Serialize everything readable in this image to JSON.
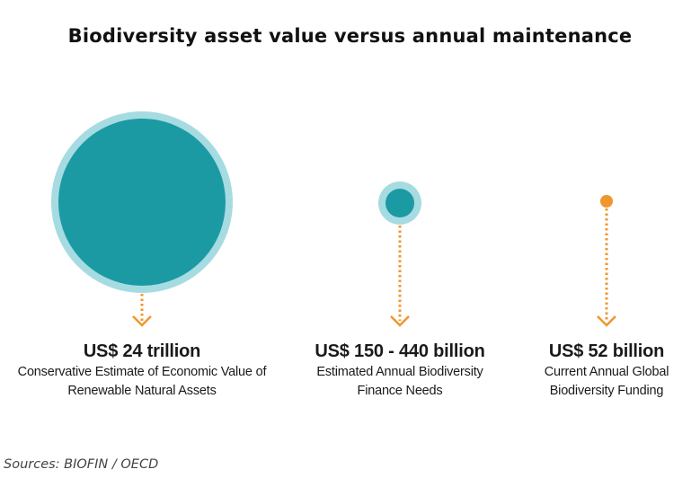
{
  "chart_data": {
    "type": "bubble",
    "title": "Biodiversity asset value versus annual maintenance",
    "items": [
      {
        "label": "US$ 24 trillion",
        "description_line1": "Conservative Estimate of Economic Value of",
        "description_line2": "Renewable Natural Assets",
        "value_usd_billion": 24000
      },
      {
        "label": "US$ 150 - 440 billion",
        "description_line1": "Estimated Annual Biodiversity",
        "description_line2": "Finance Needs",
        "value_usd_billion_low": 150,
        "value_usd_billion_high": 440
      },
      {
        "label": "US$ 52 billion",
        "description_line1": "Current Annual Global",
        "description_line2": "Biodiversity Funding",
        "value_usd_billion": 52
      }
    ],
    "source": "Sources: BIOFIN / OECD"
  },
  "colors": {
    "teal": "#1b9aa3",
    "light_teal": "#a6dbe2",
    "orange": "#f0962e"
  }
}
